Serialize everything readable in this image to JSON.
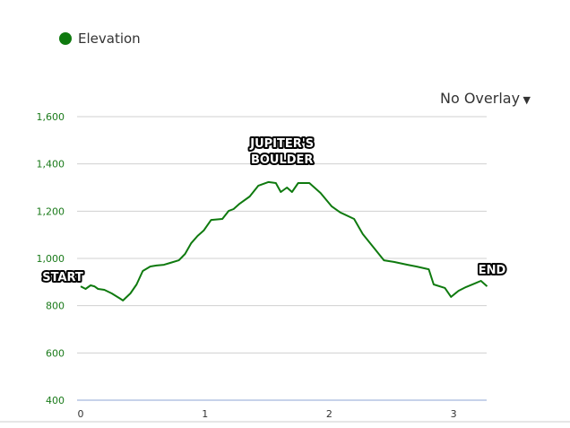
{
  "legend": {
    "label": "Elevation",
    "color": "#0f7a0f"
  },
  "overlay": {
    "label": "No Overlay",
    "icon": "caret-down-icon"
  },
  "chart_data": {
    "type": "line",
    "xlim": [
      0,
      3.27
    ],
    "ylim": [
      400,
      1600
    ],
    "xticks": [
      0,
      1,
      2,
      3
    ],
    "yticks": [
      400,
      600,
      800,
      1000,
      1200,
      1400,
      1600
    ],
    "ytick_labels": [
      "400",
      "600",
      "800",
      "1,000",
      "1,200",
      "1,400",
      "1,600"
    ],
    "grid": true,
    "series": [
      {
        "name": "Elevation",
        "color": "#0f7a0f",
        "x": [
          0,
          0.04,
          0.08,
          0.11,
          0.14,
          0.19,
          0.25,
          0.32,
          0.34,
          0.4,
          0.45,
          0.5,
          0.56,
          0.61,
          0.67,
          0.72,
          0.79,
          0.84,
          0.89,
          0.94,
          0.99,
          1.05,
          1.14,
          1.19,
          1.23,
          1.28,
          1.36,
          1.43,
          1.51,
          1.57,
          1.61,
          1.66,
          1.7,
          1.75,
          1.84,
          1.93,
          2.02,
          2.09,
          2.2,
          2.27,
          2.34,
          2.44,
          2.52,
          2.63,
          2.7,
          2.8,
          2.84,
          2.93,
          2.98,
          3.04,
          3.1,
          3.17,
          3.22,
          3.27
        ],
        "y": [
          882,
          871,
          886,
          882,
          871,
          867,
          852,
          829,
          822,
          852,
          890,
          947,
          966,
          970,
          973,
          981,
          992,
          1019,
          1065,
          1095,
          1118,
          1163,
          1167,
          1201,
          1209,
          1232,
          1262,
          1308,
          1323,
          1319,
          1281,
          1300,
          1281,
          1319,
          1319,
          1277,
          1220,
          1194,
          1167,
          1103,
          1057,
          992,
          985,
          973,
          966,
          954,
          890,
          875,
          837,
          863,
          879,
          894,
          905,
          882
        ]
      }
    ],
    "annotations": [
      {
        "text": "START",
        "x": 0,
        "y": 882
      },
      {
        "text": "JUPITER'S",
        "x": 1.62,
        "y": 1440
      },
      {
        "text": "BOULDER",
        "x": 1.62,
        "y": 1372
      },
      {
        "text": "END",
        "x": 3.27,
        "y": 905
      }
    ]
  }
}
